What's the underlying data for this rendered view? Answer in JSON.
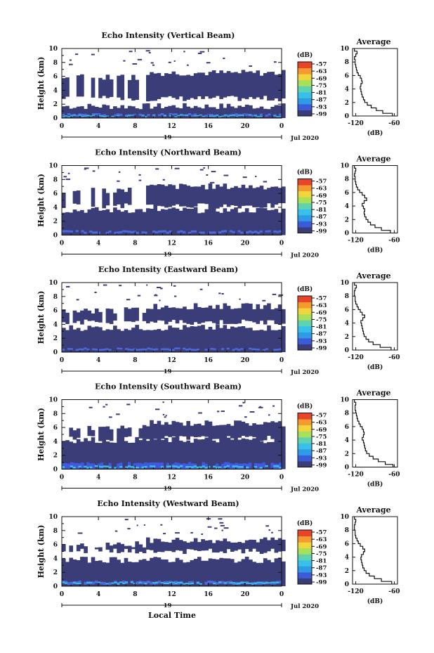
{
  "chart_data": [
    {
      "type": "heatmap",
      "title": "Echo Intensity (Vertical Beam)",
      "ylabel": "Height (km)",
      "ylim": [
        0,
        10
      ],
      "yticks": [
        "0",
        "2",
        "4",
        "6",
        "8",
        "10"
      ],
      "xlim": [
        0,
        24
      ],
      "xticks": [
        "0",
        "4",
        "8",
        "12",
        "16",
        "20",
        "0"
      ],
      "date_day": "19",
      "date_month_year": "Jul 2020",
      "colorbar": {
        "label": "(dB)",
        "ticks": [
          "-57",
          "-63",
          "-69",
          "-75",
          "-81",
          "-87",
          "-93",
          "-99"
        ]
      },
      "profile": {
        "title": "Average",
        "xlabel": "(dB)",
        "xticks": [
          "-120",
          "-60"
        ],
        "xlim": [
          -125,
          -55
        ],
        "heights": [
          0.2,
          0.6,
          1.0,
          1.4,
          1.8,
          2.2,
          2.6,
          3.0,
          3.4,
          3.8,
          4.2,
          4.6,
          5.0,
          5.4,
          5.8,
          6.2,
          6.6,
          7.0,
          7.4,
          7.8,
          8.2,
          8.6,
          9.0,
          9.4,
          9.8
        ],
        "values": [
          -63,
          -78,
          -88,
          -96,
          -102,
          -106,
          -108,
          -110,
          -111,
          -112,
          -113,
          -112,
          -110,
          -111,
          -113,
          -116,
          -118,
          -119,
          -120,
          -121,
          -121,
          -122,
          -120,
          -118,
          -122
        ]
      },
      "layers": [
        [
          0,
          1.7
        ],
        [
          2.8,
          6.5
        ]
      ],
      "high_echo": [
        [
          0.3,
          0.6,
          "#4b6be0"
        ],
        [
          0.25,
          0.4,
          "#37c1e8"
        ]
      ]
    },
    {
      "type": "heatmap",
      "title": "Echo Intensity (Northward Beam)",
      "ylabel": "Height (km)",
      "ylim": [
        0,
        10
      ],
      "yticks": [
        "0",
        "2",
        "4",
        "6",
        "8",
        "10"
      ],
      "xlim": [
        0,
        24
      ],
      "xticks": [
        "0",
        "4",
        "8",
        "12",
        "16",
        "20",
        "0"
      ],
      "date_day": "19",
      "date_month_year": "Jul 2020",
      "colorbar": {
        "label": "(dB)",
        "ticks": [
          "-57",
          "-63",
          "-69",
          "-75",
          "-81",
          "-87",
          "-93",
          "-99"
        ]
      },
      "profile": {
        "title": "Average",
        "xlabel": "(dB)",
        "xticks": [
          "-120",
          "-60"
        ],
        "xlim": [
          -125,
          -55
        ],
        "heights": [
          0.2,
          0.6,
          1.0,
          1.4,
          1.8,
          2.2,
          2.6,
          3.0,
          3.4,
          3.8,
          4.2,
          4.6,
          5.0,
          5.4,
          5.8,
          6.2,
          6.6,
          7.0,
          7.4,
          7.8,
          8.2,
          8.6,
          9.0,
          9.4,
          9.8
        ],
        "values": [
          -66,
          -80,
          -90,
          -97,
          -101,
          -104,
          -106,
          -107,
          -106,
          -108,
          -110,
          -107,
          -103,
          -106,
          -110,
          -114,
          -117,
          -119,
          -120,
          -121,
          -121,
          -122,
          -121,
          -120,
          -122
        ]
      },
      "layers": [
        [
          0,
          3.6
        ],
        [
          4.2,
          7.0
        ]
      ],
      "high_echo": [
        [
          0.3,
          0.6,
          "#4b6be0"
        ]
      ]
    },
    {
      "type": "heatmap",
      "title": "Echo Intensity (Eastward Beam)",
      "ylabel": "Height (km)",
      "ylim": [
        0,
        10
      ],
      "yticks": [
        "0",
        "2",
        "4",
        "6",
        "8",
        "10"
      ],
      "xlim": [
        0,
        24
      ],
      "xticks": [
        "0",
        "4",
        "8",
        "12",
        "16",
        "20",
        "0"
      ],
      "date_day": "19",
      "date_month_year": "Jul 2020",
      "colorbar": {
        "label": "(dB)",
        "ticks": [
          "-57",
          "-63",
          "-69",
          "-75",
          "-81",
          "-87",
          "-93",
          "-99"
        ]
      },
      "profile": {
        "title": "Average",
        "xlabel": "(dB)",
        "xticks": [
          "-120",
          "-60"
        ],
        "xlim": [
          -125,
          -55
        ],
        "heights": [
          0.2,
          0.6,
          1.0,
          1.4,
          1.8,
          2.2,
          2.6,
          3.0,
          3.4,
          3.8,
          4.2,
          4.6,
          5.0,
          5.4,
          5.8,
          6.2,
          6.6,
          7.0,
          7.4,
          7.8,
          8.2,
          8.6,
          9.0,
          9.4,
          9.8
        ],
        "values": [
          -65,
          -82,
          -93,
          -100,
          -104,
          -107,
          -108,
          -109,
          -110,
          -111,
          -112,
          -109,
          -106,
          -110,
          -113,
          -116,
          -118,
          -120,
          -121,
          -121,
          -122,
          -122,
          -121,
          -119,
          -122
        ]
      },
      "layers": [
        [
          0,
          3.5
        ],
        [
          4.3,
          6.6
        ]
      ],
      "high_echo": [
        [
          0.3,
          0.55,
          "#4b6be0"
        ]
      ]
    },
    {
      "type": "heatmap",
      "title": "Echo Intensity (Southward Beam)",
      "ylabel": "Height (km)",
      "ylim": [
        0,
        10
      ],
      "yticks": [
        "0",
        "2",
        "4",
        "6",
        "8",
        "10"
      ],
      "xlim": [
        0,
        24
      ],
      "xticks": [
        "0",
        "4",
        "8",
        "12",
        "16",
        "20",
        "0"
      ],
      "date_day": "19",
      "date_month_year": "Jul 2020",
      "colorbar": {
        "label": "(dB)",
        "ticks": [
          "-57",
          "-63",
          "-69",
          "-75",
          "-81",
          "-87",
          "-93",
          "-99"
        ]
      },
      "profile": {
        "title": "Average",
        "xlabel": "(dB)",
        "xticks": [
          "-120",
          "-60"
        ],
        "xlim": [
          -125,
          -55
        ],
        "heights": [
          0.2,
          0.6,
          1.0,
          1.4,
          1.8,
          2.2,
          2.6,
          3.0,
          3.4,
          3.8,
          4.2,
          4.6,
          5.0,
          5.4,
          5.8,
          6.2,
          6.6,
          7.0,
          7.4,
          7.8,
          8.2,
          8.6,
          9.0,
          9.4,
          9.8
        ],
        "values": [
          -62,
          -74,
          -85,
          -93,
          -99,
          -103,
          -105,
          -106,
          -107,
          -108,
          -110,
          -108,
          -107,
          -108,
          -110,
          -113,
          -115,
          -117,
          -118,
          -119,
          -120,
          -121,
          -121,
          -120,
          -122
        ]
      },
      "layers": [
        [
          0,
          4.2
        ],
        [
          4.4,
          6.6
        ]
      ],
      "high_echo": [
        [
          0.1,
          0.9,
          "#3f5ae0"
        ],
        [
          0.2,
          0.45,
          "#37c1e8"
        ]
      ]
    },
    {
      "type": "heatmap",
      "title": "Echo Intensity (Westward Beam)",
      "ylabel": "Height (km)",
      "ylim": [
        0,
        10
      ],
      "yticks": [
        "0",
        "2",
        "4",
        "6",
        "8",
        "10"
      ],
      "xlim": [
        0,
        24
      ],
      "xticks": [
        "0",
        "4",
        "8",
        "12",
        "16",
        "20",
        "0"
      ],
      "date_day": "19",
      "date_month_year": "Jul 2020",
      "colorbar": {
        "label": "(dB)",
        "ticks": [
          "-57",
          "-63",
          "-69",
          "-75",
          "-81",
          "-87",
          "-93",
          "-99"
        ]
      },
      "profile": {
        "title": "Average",
        "xlabel": "(dB)",
        "xticks": [
          "-120",
          "-60"
        ],
        "xlim": [
          -125,
          -55
        ],
        "heights": [
          0.2,
          0.6,
          1.0,
          1.4,
          1.8,
          2.2,
          2.6,
          3.0,
          3.4,
          3.8,
          4.2,
          4.6,
          5.0,
          5.4,
          5.8,
          6.2,
          6.6,
          7.0,
          7.4,
          7.8,
          8.2,
          8.6,
          9.0,
          9.4,
          9.8
        ],
        "values": [
          -64,
          -80,
          -91,
          -99,
          -104,
          -107,
          -109,
          -110,
          -111,
          -112,
          -111,
          -108,
          -106,
          -109,
          -113,
          -116,
          -118,
          -120,
          -121,
          -121,
          -122,
          -122,
          -121,
          -120,
          -122
        ]
      },
      "layers": [
        [
          0,
          3.8
        ],
        [
          5.0,
          6.6
        ]
      ],
      "high_echo": [
        [
          0.3,
          0.7,
          "#4b6be0"
        ],
        [
          0.35,
          0.55,
          "#37c1e8"
        ]
      ]
    }
  ],
  "x_axis_label": "Local Time",
  "colors": {
    "echo_base": "#3b3d78",
    "colorbar": [
      "#3b3d78",
      "#3b5bd8",
      "#2f9be6",
      "#37c1e8",
      "#5fd3b0",
      "#a8e05a",
      "#f0d63c",
      "#f59a2e",
      "#e8442a"
    ]
  }
}
